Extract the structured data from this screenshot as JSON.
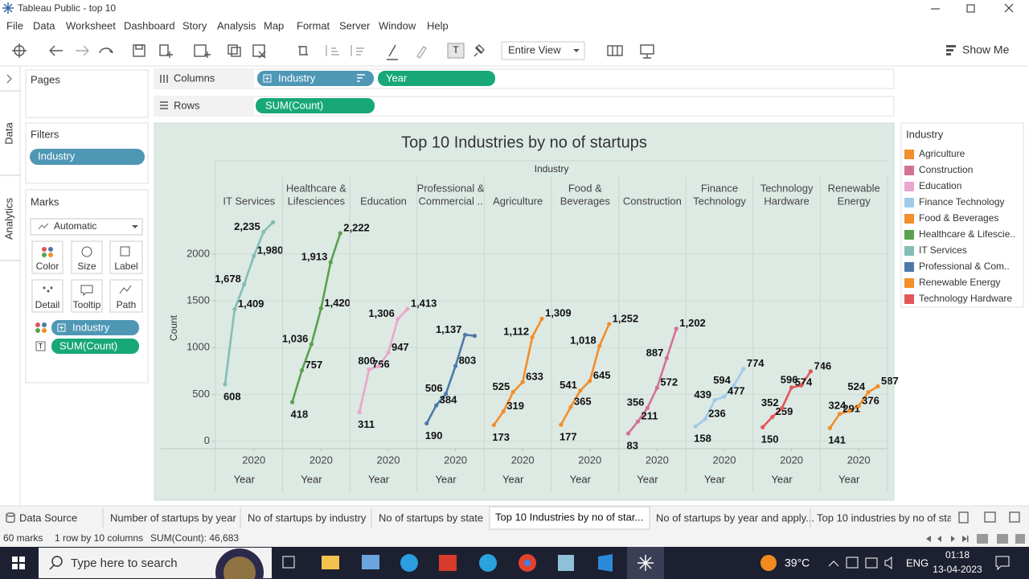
{
  "window": {
    "title": "Tableau Public - top 10"
  },
  "menu": [
    "File",
    "Data",
    "Worksheet",
    "Dashboard",
    "Story",
    "Analysis",
    "Map",
    "Format",
    "Server",
    "Window",
    "Help"
  ],
  "toolbar": {
    "view": "Entire View",
    "show_me": "Show Me"
  },
  "side_tabs": [
    "Data",
    "Analytics"
  ],
  "pages": {
    "title": "Pages"
  },
  "filters": {
    "title": "Filters",
    "pills": [
      "Industry"
    ]
  },
  "marks": {
    "title": "Marks",
    "type": "Automatic",
    "buttons": [
      "Color",
      "Size",
      "Label",
      "Detail",
      "Tooltip",
      "Path"
    ],
    "pills": [
      "Industry",
      "SUM(Count)"
    ]
  },
  "shelves": {
    "columns": {
      "label": "Columns",
      "pills": [
        "Industry",
        "Year"
      ]
    },
    "rows": {
      "label": "Rows",
      "pills": [
        "SUM(Count)"
      ]
    }
  },
  "chart_data": {
    "type": "line",
    "title": "Top 10 Industries by no of startups",
    "column_header": "Industry",
    "x_label": "Year",
    "y_label": "Count",
    "x": [
      2017,
      2018,
      2019,
      2020,
      2021,
      2022
    ],
    "xlim": [
      2016,
      2023
    ],
    "xticks": [
      2020
    ],
    "ylim": [
      -80,
      2480
    ],
    "yticks": [
      0,
      500,
      1000,
      1500,
      2000
    ],
    "grid": true,
    "series": [
      {
        "header": [
          "IT Services"
        ],
        "color": "#86bcb6",
        "values": [
          608,
          1409,
          1678,
          1980,
          2235,
          2340
        ],
        "value_labels": [
          "608",
          "1,409",
          "1,678",
          "1,980",
          "2,235",
          null
        ]
      },
      {
        "header": [
          "Healthcare &",
          "Lifesciences"
        ],
        "color": "#59a14f",
        "values": [
          418,
          757,
          1036,
          1420,
          1913,
          2222
        ],
        "value_labels": [
          "418",
          "757",
          "1,036",
          "1,420",
          "1,913",
          "2,222"
        ]
      },
      {
        "header": [
          "Education"
        ],
        "color": "#eaa6cc",
        "values": [
          311,
          766,
          800,
          947,
          1306,
          1413
        ],
        "value_labels": [
          "311",
          "766",
          "800",
          "947",
          "1,306",
          "1,413"
        ]
      },
      {
        "header": [
          "Professional &",
          "Commercial .."
        ],
        "color": "#4e79a7",
        "values": [
          190,
          384,
          506,
          803,
          1137,
          1126
        ],
        "value_labels": [
          "190",
          "384",
          "506",
          "803",
          "1,137",
          null
        ]
      },
      {
        "header": [
          "Agriculture"
        ],
        "color": "#f28e2b",
        "values": [
          173,
          319,
          525,
          633,
          1112,
          1309
        ],
        "value_labels": [
          "173",
          "319",
          "525",
          "633",
          "1,112",
          "1,309"
        ]
      },
      {
        "header": [
          "Food &",
          "Beverages"
        ],
        "color": "#f28e2b",
        "values": [
          177,
          365,
          541,
          645,
          1018,
          1252
        ],
        "value_labels": [
          "177",
          "365",
          "541",
          "645",
          "1,018",
          "1,252"
        ]
      },
      {
        "header": [
          "Construction"
        ],
        "color": "#d37295",
        "values": [
          83,
          211,
          356,
          572,
          887,
          1202
        ],
        "value_labels": [
          "83",
          "211",
          "356",
          "572",
          "887",
          "1,202"
        ]
      },
      {
        "header": [
          "Finance",
          "Technology"
        ],
        "color": "#a0cbe8",
        "values": [
          158,
          236,
          439,
          477,
          594,
          774
        ],
        "value_labels": [
          "158",
          "236",
          "439",
          "477",
          "594",
          "774"
        ]
      },
      {
        "header": [
          "Technology",
          "Hardware"
        ],
        "color": "#e15759",
        "values": [
          150,
          259,
          352,
          574,
          596,
          746
        ],
        "value_labels": [
          "150",
          "259",
          "352",
          "574",
          "596",
          "746"
        ]
      },
      {
        "header": [
          "Renewable",
          "Energy"
        ],
        "color": "#f28e2b",
        "values": [
          141,
          291,
          324,
          376,
          524,
          587
        ],
        "value_labels": [
          "141",
          "291",
          "324",
          "376",
          "524",
          "587"
        ]
      }
    ],
    "legend": {
      "title": "Industry",
      "items": [
        {
          "name": "Agriculture",
          "color": "#f28e2b"
        },
        {
          "name": "Construction",
          "color": "#d37295"
        },
        {
          "name": "Education",
          "color": "#eaa6cc"
        },
        {
          "name": "Finance Technology",
          "color": "#a0cbe8"
        },
        {
          "name": "Food & Beverages",
          "color": "#f28e2b"
        },
        {
          "name": "Healthcare & Lifescie..",
          "color": "#59a14f"
        },
        {
          "name": "IT Services",
          "color": "#86bcb6"
        },
        {
          "name": "Professional & Com..",
          "color": "#4e79a7"
        },
        {
          "name": "Renewable Energy",
          "color": "#f28e2b"
        },
        {
          "name": "Technology Hardware",
          "color": "#e15759"
        }
      ]
    }
  },
  "tabs": [
    "Data Source",
    "Number of startups by year",
    "No of startups by industry",
    "No of startups by state",
    "Top 10 Industries by no of star...",
    "No of startups by year and apply...",
    "Top 10 industries by no of start"
  ],
  "status": {
    "marks": "60 marks",
    "layout": "1 row by 10 columns",
    "sum": "SUM(Count): 46,683"
  },
  "taskbar": {
    "search": "Type here to search",
    "temp": "39°C",
    "lang": "ENG",
    "time": "01:18",
    "date": "13-04-2023"
  }
}
